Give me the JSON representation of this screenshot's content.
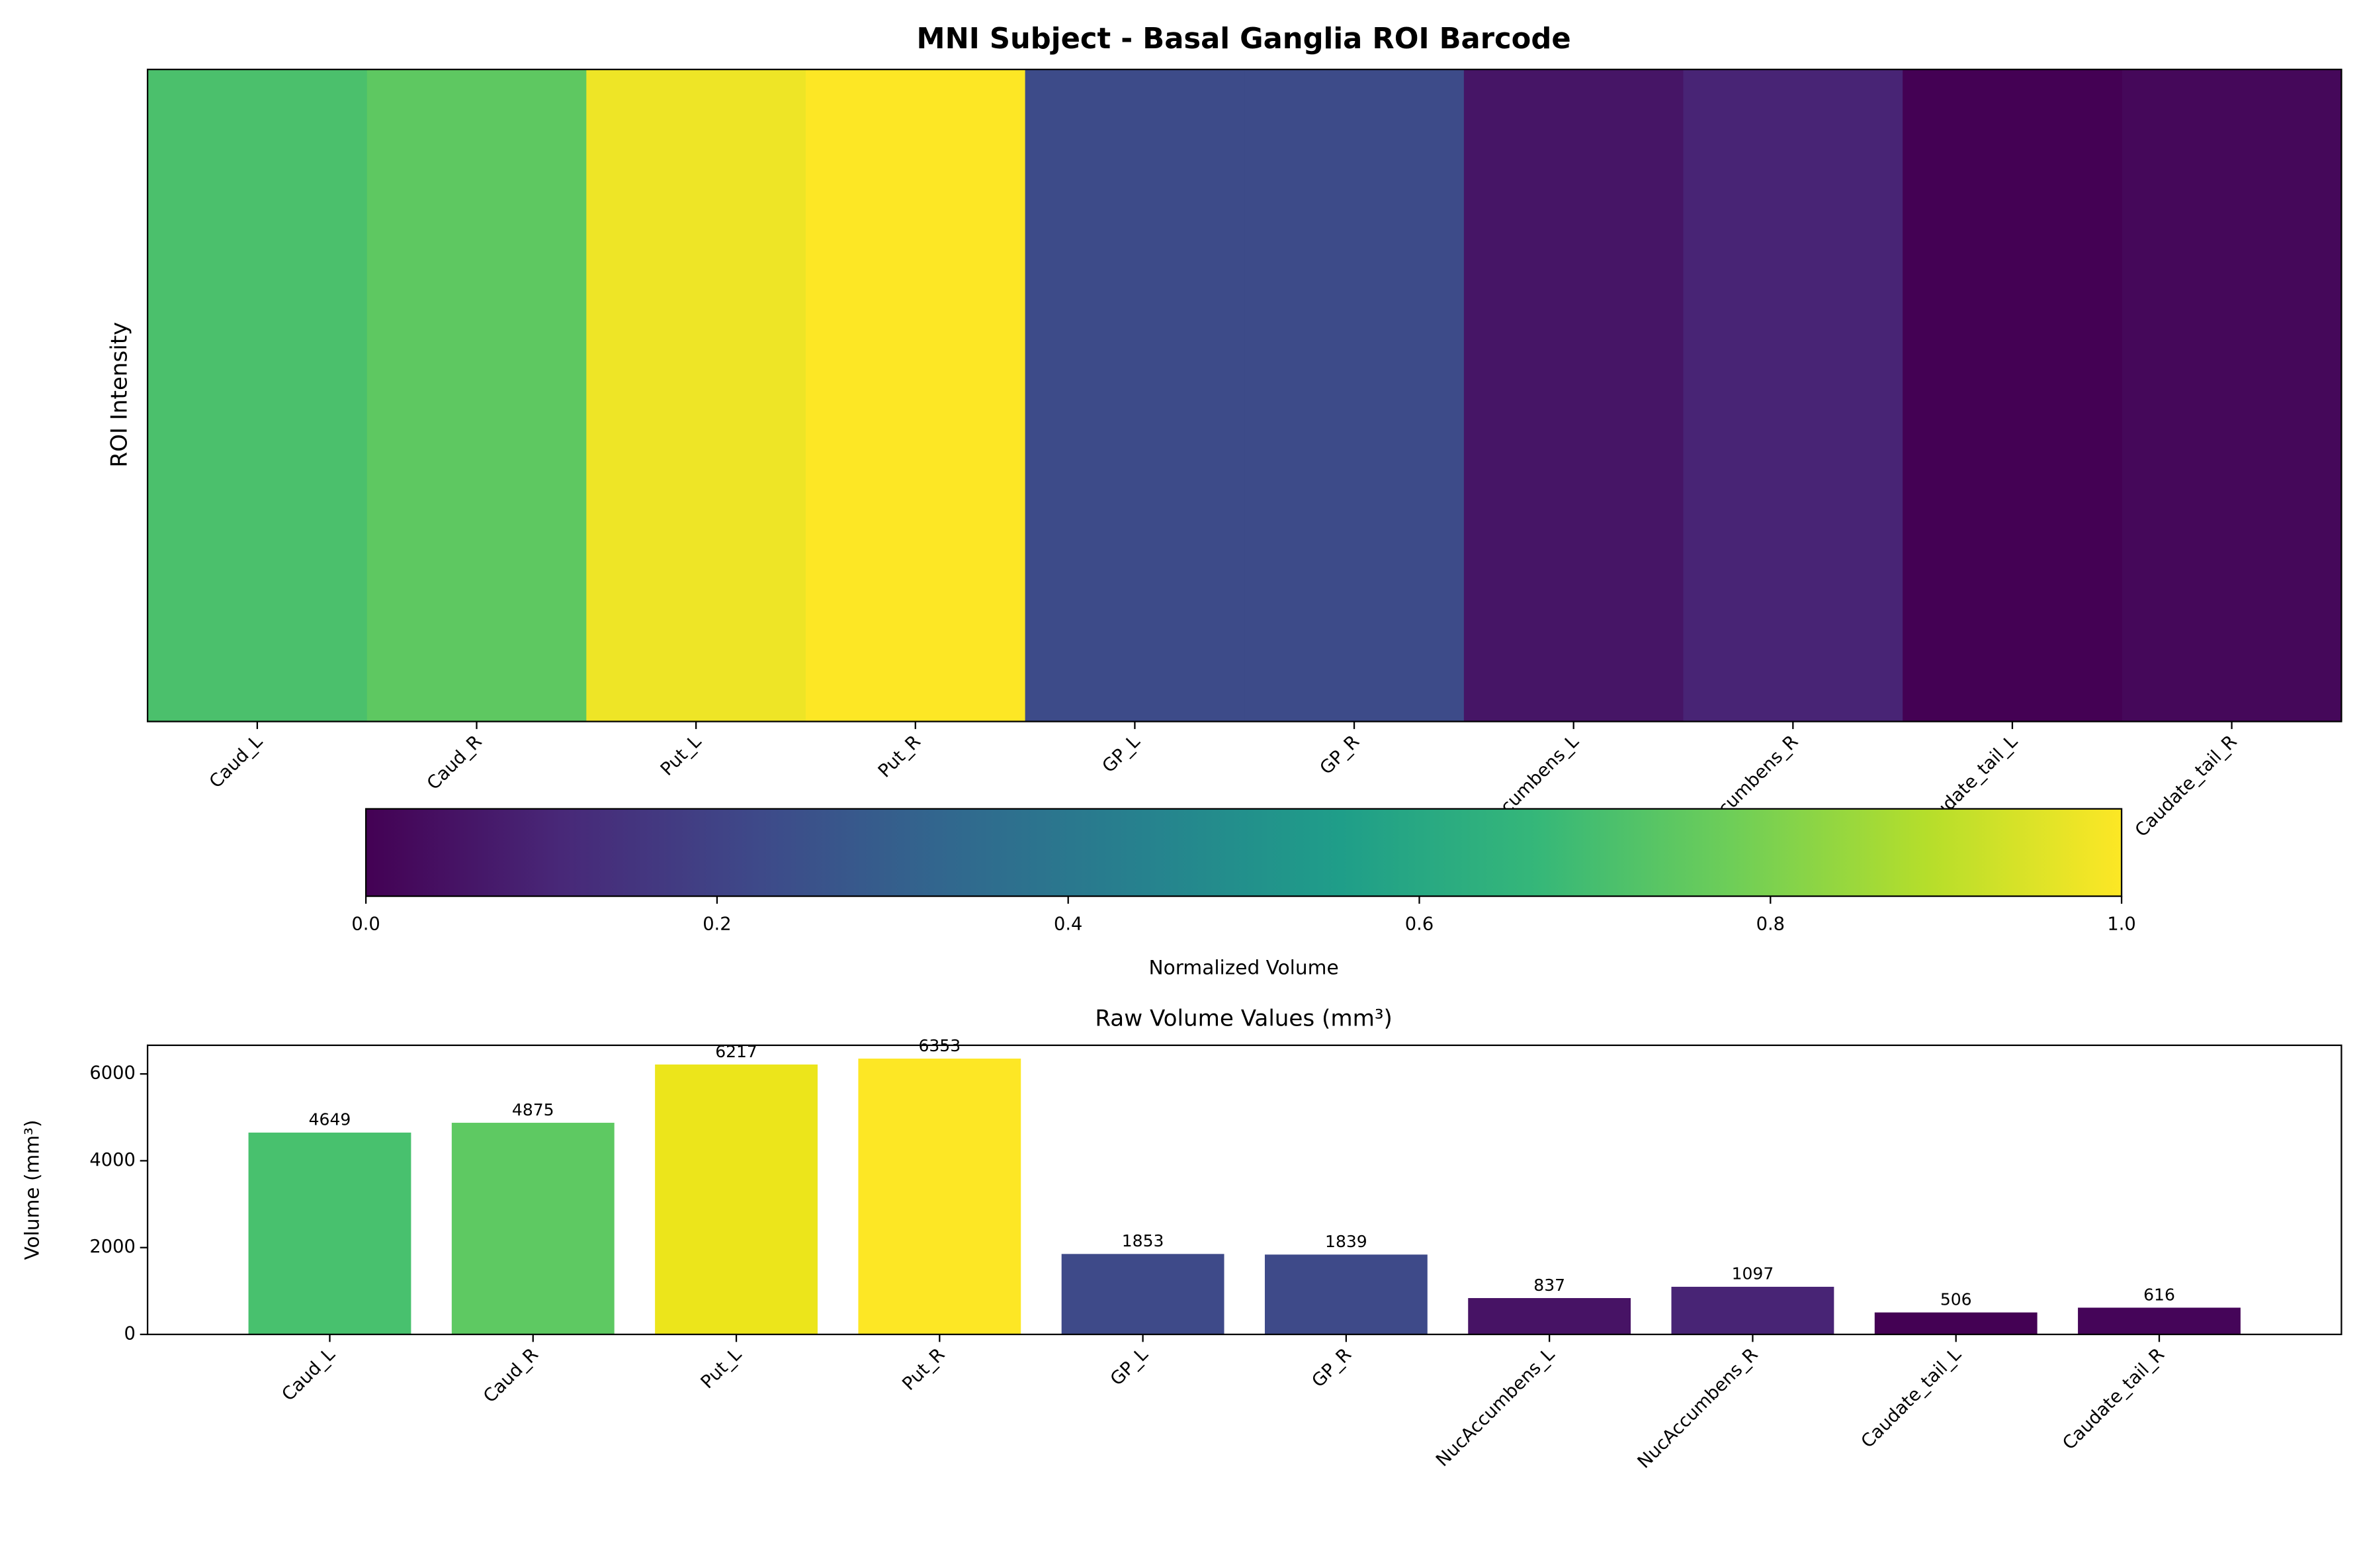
{
  "chart_data": [
    {
      "type": "heatmap",
      "title": "MNI Subject - Basal Ganglia ROI Barcode",
      "ylabel": "ROI Intensity",
      "categories": [
        "Caud_L",
        "Caud_R",
        "Put_L",
        "Put_R",
        "GP_L",
        "GP_R",
        "NucAccumbens_L",
        "NucAccumbens_R",
        "Caudate_tail_L",
        "Caudate_tail_R"
      ],
      "values": [
        0.709,
        0.747,
        0.977,
        1.0,
        0.23,
        0.228,
        0.057,
        0.101,
        0.0,
        0.019
      ],
      "colormap": [
        "#440154",
        "#482878",
        "#3e4989",
        "#31688e",
        "#26828e",
        "#1f9e89",
        "#35b779",
        "#6ece58",
        "#b5de2b",
        "#fde725"
      ],
      "colorbar": {
        "label": "Normalized Volume",
        "lim": [
          0,
          1
        ],
        "ticks": [
          {
            "value": 0,
            "label": "0.0"
          },
          0.2,
          0.4,
          0.6,
          0.8,
          {
            "value": 1,
            "label": "1.0"
          }
        ]
      }
    },
    {
      "type": "bar",
      "title": "Raw Volume Values (mm³)",
      "ylabel": "Volume (mm³)",
      "categories": [
        "Caud_L",
        "Caud_R",
        "Put_L",
        "Put_R",
        "GP_L",
        "GP_R",
        "NucAccumbens_L",
        "NucAccumbens_R",
        "Caudate_tail_L",
        "Caudate_tail_R"
      ],
      "values": [
        4649,
        4875,
        6217,
        6353,
        1853,
        1839,
        837,
        1097,
        506,
        616
      ],
      "colors": [
        "#48c16e",
        "#5ec962",
        "#ece51b",
        "#fde725",
        "#3e4a89",
        "#3e4a89",
        "#471365",
        "#482475",
        "#440154",
        "#450559"
      ],
      "ylim": [
        0,
        6660
      ],
      "yticks": [
        0,
        2000,
        4000,
        6000
      ]
    }
  ]
}
